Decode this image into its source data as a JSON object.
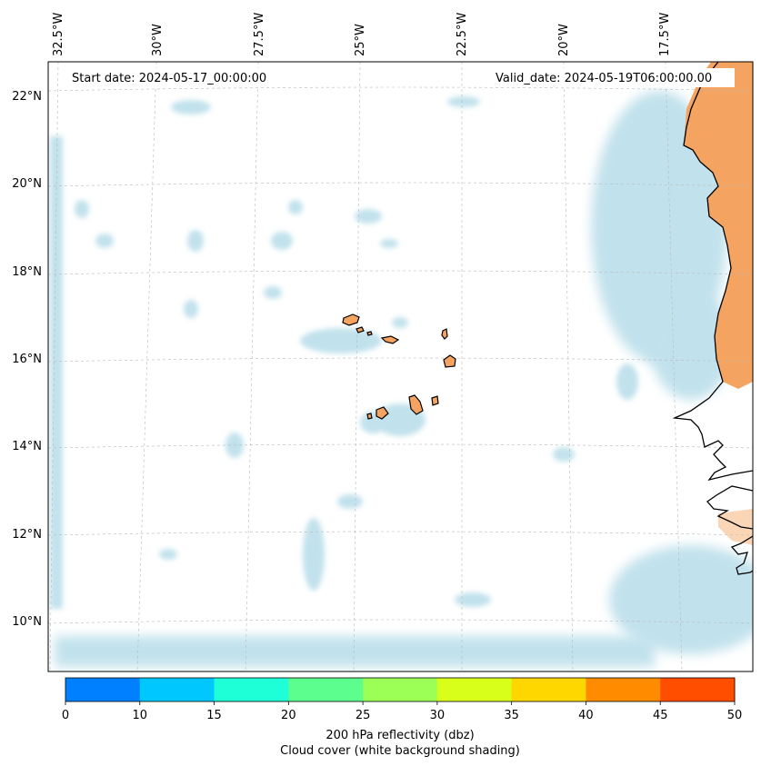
{
  "map": {
    "start_date": "Start date: 2024-05-17_00:00:00",
    "valid_date": "Valid_date: 2024-05-19T06:00:00.00",
    "lon_labels": [
      "32.5°W",
      "30°W",
      "27.5°W",
      "25°W",
      "22.5°W",
      "20°W",
      "17.5°W"
    ],
    "lat_labels": [
      "22°N",
      "20°N",
      "18°N",
      "16°N",
      "14°N",
      "12°N",
      "10°N"
    ],
    "colors": {
      "cloud": "#add8e6",
      "land_reflectivity": "#f4a460",
      "coastline": "#000000",
      "grid": "#b8b8b8"
    }
  },
  "colorbar": {
    "ticks": [
      "0",
      "10",
      "15",
      "20",
      "25",
      "30",
      "35",
      "40",
      "45",
      "50"
    ],
    "colors": [
      "#0080ff",
      "#00c8ff",
      "#1effd8",
      "#5cff8e",
      "#9bff55",
      "#d8ff1a",
      "#ffd700",
      "#ff8c00",
      "#ff4e00"
    ],
    "label_line1": "200 hPa reflectivity (dbz)",
    "label_line2": "Cloud cover (white background shading)"
  }
}
